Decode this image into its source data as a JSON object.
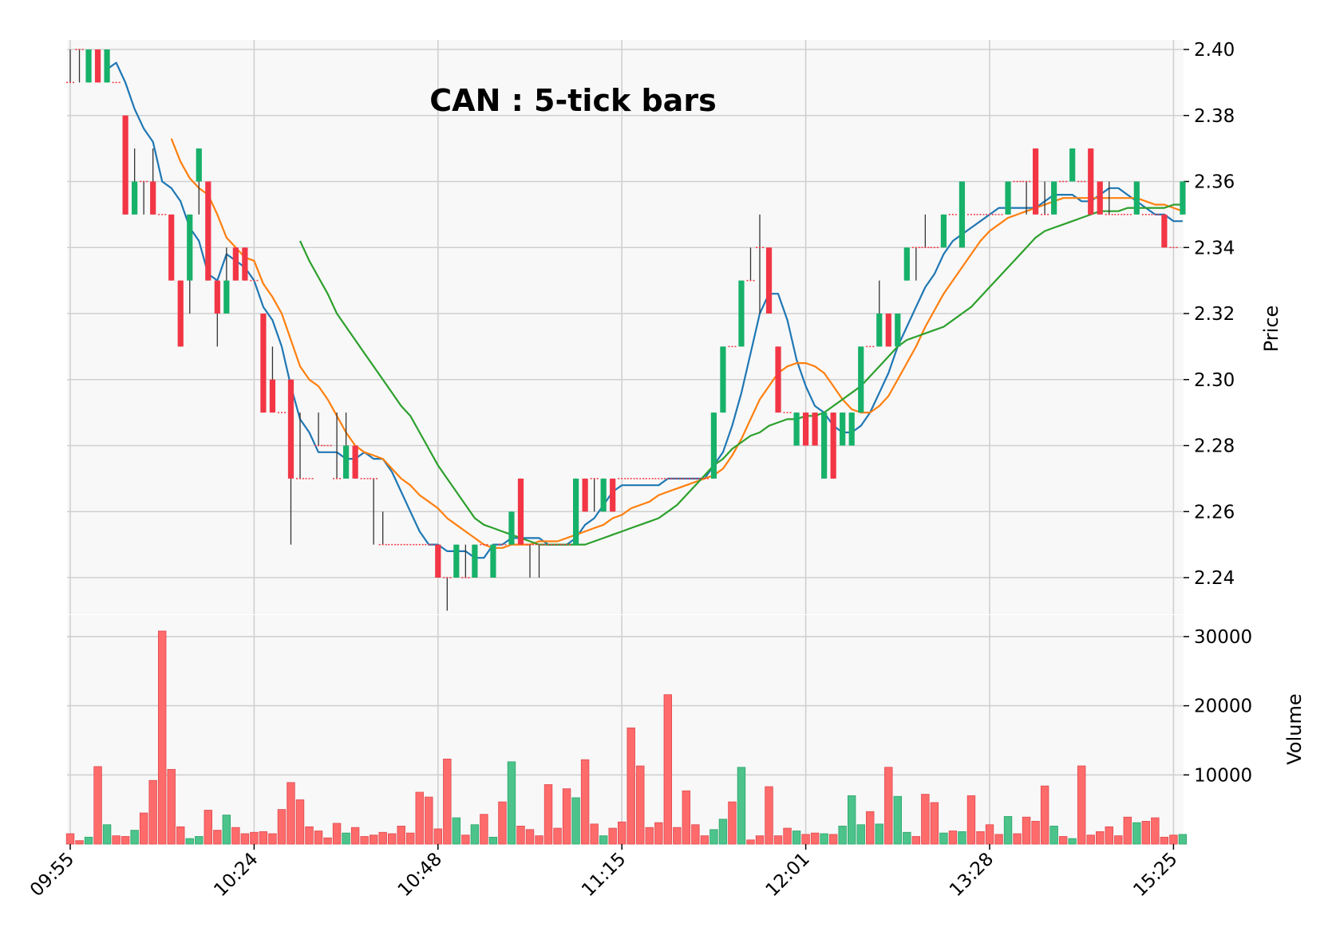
{
  "chart_data": {
    "type": "candlestick",
    "title": "CAN : 5-tick bars",
    "price_axis": {
      "label": "Price",
      "ticks": [
        "2.24",
        "2.26",
        "2.28",
        "2.30",
        "2.32",
        "2.34",
        "2.36",
        "2.38",
        "2.40"
      ],
      "ylim": [
        2.23,
        2.4
      ]
    },
    "volume_axis": {
      "label": "Volume",
      "ticks": [
        "10000",
        "20000",
        "30000"
      ],
      "ylim": [
        0,
        31000
      ]
    },
    "x_ticks": [
      {
        "index": 0,
        "label": "09:55"
      },
      {
        "index": 20,
        "label": "10:24"
      },
      {
        "index": 40,
        "label": "10:48"
      },
      {
        "index": 60,
        "label": "11:15"
      },
      {
        "index": 80,
        "label": "12:01"
      },
      {
        "index": 100,
        "label": "13:28"
      },
      {
        "index": 120,
        "label": "15:25"
      }
    ],
    "grid": true,
    "colors": {
      "up": "#17b169",
      "down": "#f23645",
      "up_volume": "#4cc38a",
      "down_volume": "#ff6b6b",
      "ma_short": "#1f77b4",
      "ma_mid": "#ff7f0e",
      "ma_long": "#2ca02c"
    },
    "candles": [
      [
        2.39,
        2.4,
        2.39,
        2.39
      ],
      [
        2.4,
        2.4,
        2.39,
        2.4
      ],
      [
        2.39,
        2.4,
        2.39,
        2.4
      ],
      [
        2.4,
        2.4,
        2.39,
        2.39
      ],
      [
        2.39,
        2.4,
        2.39,
        2.4
      ],
      [
        2.39,
        2.39,
        2.39,
        2.39
      ],
      [
        2.38,
        2.38,
        2.35,
        2.35
      ],
      [
        2.35,
        2.37,
        2.35,
        2.36
      ],
      [
        2.36,
        2.36,
        2.35,
        2.36
      ],
      [
        2.36,
        2.37,
        2.35,
        2.35
      ],
      [
        2.35,
        2.35,
        2.35,
        2.35
      ],
      [
        2.35,
        2.35,
        2.33,
        2.33
      ],
      [
        2.33,
        2.33,
        2.31,
        2.31
      ],
      [
        2.33,
        2.35,
        2.32,
        2.35
      ],
      [
        2.36,
        2.37,
        2.35,
        2.37
      ],
      [
        2.36,
        2.36,
        2.33,
        2.33
      ],
      [
        2.33,
        2.33,
        2.31,
        2.32
      ],
      [
        2.32,
        2.34,
        2.32,
        2.33
      ],
      [
        2.34,
        2.34,
        2.33,
        2.33
      ],
      [
        2.34,
        2.34,
        2.33,
        2.33
      ],
      [
        2.33,
        2.33,
        2.33,
        2.33
      ],
      [
        2.32,
        2.32,
        2.29,
        2.29
      ],
      [
        2.3,
        2.31,
        2.29,
        2.29
      ],
      [
        2.29,
        2.29,
        2.29,
        2.29
      ],
      [
        2.3,
        2.3,
        2.25,
        2.27
      ],
      [
        2.27,
        2.29,
        2.27,
        2.27
      ],
      [
        2.27,
        2.27,
        2.27,
        2.27
      ],
      [
        2.28,
        2.29,
        2.28,
        2.28
      ],
      [
        2.28,
        2.28,
        2.28,
        2.28
      ],
      [
        2.27,
        2.29,
        2.27,
        2.27
      ],
      [
        2.27,
        2.29,
        2.27,
        2.28
      ],
      [
        2.28,
        2.28,
        2.27,
        2.27
      ],
      [
        2.27,
        2.27,
        2.27,
        2.27
      ],
      [
        2.27,
        2.27,
        2.25,
        2.27
      ],
      [
        2.25,
        2.26,
        2.25,
        2.25
      ],
      [
        2.25,
        2.25,
        2.25,
        2.25
      ],
      [
        2.25,
        2.25,
        2.25,
        2.25
      ],
      [
        2.25,
        2.25,
        2.25,
        2.25
      ],
      [
        2.25,
        2.25,
        2.25,
        2.25
      ],
      [
        2.25,
        2.25,
        2.25,
        2.25
      ],
      [
        2.25,
        2.25,
        2.24,
        2.24
      ],
      [
        2.24,
        2.24,
        2.23,
        2.24
      ],
      [
        2.24,
        2.25,
        2.24,
        2.25
      ],
      [
        2.24,
        2.25,
        2.24,
        2.24
      ],
      [
        2.24,
        2.25,
        2.24,
        2.25
      ],
      [
        2.25,
        2.25,
        2.25,
        2.25
      ],
      [
        2.24,
        2.25,
        2.24,
        2.25
      ],
      [
        2.25,
        2.25,
        2.25,
        2.25
      ],
      [
        2.25,
        2.26,
        2.25,
        2.26
      ],
      [
        2.27,
        2.27,
        2.25,
        2.25
      ],
      [
        2.25,
        2.25,
        2.24,
        2.25
      ],
      [
        2.25,
        2.25,
        2.24,
        2.25
      ],
      [
        2.25,
        2.25,
        2.25,
        2.25
      ],
      [
        2.25,
        2.25,
        2.25,
        2.25
      ],
      [
        2.25,
        2.25,
        2.25,
        2.25
      ],
      [
        2.25,
        2.27,
        2.25,
        2.27
      ],
      [
        2.27,
        2.27,
        2.26,
        2.26
      ],
      [
        2.27,
        2.27,
        2.26,
        2.27
      ],
      [
        2.26,
        2.27,
        2.26,
        2.27
      ],
      [
        2.27,
        2.27,
        2.26,
        2.26
      ],
      [
        2.27,
        2.27,
        2.27,
        2.27
      ],
      [
        2.27,
        2.27,
        2.27,
        2.27
      ],
      [
        2.27,
        2.27,
        2.27,
        2.27
      ],
      [
        2.27,
        2.27,
        2.27,
        2.27
      ],
      [
        2.27,
        2.27,
        2.27,
        2.27
      ],
      [
        2.27,
        2.27,
        2.27,
        2.27
      ],
      [
        2.27,
        2.27,
        2.27,
        2.27
      ],
      [
        2.27,
        2.27,
        2.27,
        2.27
      ],
      [
        2.27,
        2.27,
        2.27,
        2.27
      ],
      [
        2.27,
        2.27,
        2.27,
        2.27
      ],
      [
        2.27,
        2.29,
        2.27,
        2.29
      ],
      [
        2.29,
        2.31,
        2.29,
        2.31
      ],
      [
        2.31,
        2.31,
        2.31,
        2.31
      ],
      [
        2.31,
        2.33,
        2.31,
        2.33
      ],
      [
        2.33,
        2.34,
        2.33,
        2.33
      ],
      [
        2.34,
        2.35,
        2.32,
        2.34
      ],
      [
        2.34,
        2.34,
        2.32,
        2.32
      ],
      [
        2.31,
        2.31,
        2.29,
        2.29
      ],
      [
        2.29,
        2.29,
        2.29,
        2.29
      ],
      [
        2.28,
        2.29,
        2.28,
        2.29
      ],
      [
        2.29,
        2.29,
        2.28,
        2.28
      ],
      [
        2.29,
        2.29,
        2.28,
        2.28
      ],
      [
        2.27,
        2.29,
        2.27,
        2.29
      ],
      [
        2.29,
        2.29,
        2.27,
        2.27
      ],
      [
        2.28,
        2.29,
        2.28,
        2.29
      ],
      [
        2.28,
        2.29,
        2.28,
        2.29
      ],
      [
        2.29,
        2.31,
        2.29,
        2.31
      ],
      [
        2.31,
        2.31,
        2.31,
        2.31
      ],
      [
        2.31,
        2.33,
        2.31,
        2.32
      ],
      [
        2.32,
        2.32,
        2.31,
        2.31
      ],
      [
        2.31,
        2.32,
        2.31,
        2.32
      ],
      [
        2.33,
        2.34,
        2.33,
        2.34
      ],
      [
        2.34,
        2.34,
        2.33,
        2.34
      ],
      [
        2.34,
        2.35,
        2.34,
        2.34
      ],
      [
        2.34,
        2.34,
        2.34,
        2.34
      ],
      [
        2.34,
        2.35,
        2.34,
        2.35
      ],
      [
        2.35,
        2.35,
        2.35,
        2.35
      ],
      [
        2.34,
        2.36,
        2.34,
        2.36
      ],
      [
        2.35,
        2.35,
        2.35,
        2.35
      ],
      [
        2.35,
        2.35,
        2.35,
        2.35
      ],
      [
        2.35,
        2.35,
        2.35,
        2.35
      ],
      [
        2.35,
        2.35,
        2.35,
        2.35
      ],
      [
        2.35,
        2.36,
        2.35,
        2.36
      ],
      [
        2.36,
        2.36,
        2.36,
        2.36
      ],
      [
        2.36,
        2.36,
        2.35,
        2.36
      ],
      [
        2.37,
        2.37,
        2.35,
        2.35
      ],
      [
        2.35,
        2.36,
        2.35,
        2.35
      ],
      [
        2.35,
        2.36,
        2.35,
        2.36
      ],
      [
        2.36,
        2.36,
        2.36,
        2.36
      ],
      [
        2.36,
        2.37,
        2.36,
        2.37
      ],
      [
        2.36,
        2.36,
        2.36,
        2.36
      ],
      [
        2.37,
        2.37,
        2.35,
        2.35
      ],
      [
        2.36,
        2.36,
        2.35,
        2.35
      ],
      [
        2.35,
        2.36,
        2.35,
        2.35
      ],
      [
        2.35,
        2.35,
        2.35,
        2.35
      ],
      [
        2.35,
        2.35,
        2.35,
        2.35
      ],
      [
        2.35,
        2.36,
        2.35,
        2.36
      ],
      [
        2.35,
        2.35,
        2.35,
        2.35
      ],
      [
        2.35,
        2.35,
        2.35,
        2.35
      ],
      [
        2.35,
        2.35,
        2.34,
        2.34
      ],
      [
        2.34,
        2.34,
        2.34,
        2.34
      ],
      [
        2.35,
        2.36,
        2.35,
        2.36
      ]
    ],
    "volume": [
      1500,
      500,
      1000,
      11200,
      2800,
      1200,
      1100,
      2000,
      4500,
      9200,
      30800,
      10800,
      2500,
      800,
      1100,
      4900,
      2000,
      4200,
      2400,
      1500,
      1700,
      1800,
      1500,
      5000,
      8900,
      6400,
      2500,
      1900,
      900,
      3000,
      1600,
      2400,
      1100,
      1300,
      1700,
      1500,
      2600,
      1600,
      7500,
      6800,
      2200,
      12300,
      3800,
      1300,
      2800,
      4300,
      1000,
      6100,
      11900,
      2600,
      2100,
      1200,
      8600,
      2300,
      8000,
      6700,
      12200,
      2900,
      1200,
      2300,
      3200,
      16800,
      11300,
      2400,
      3100,
      21600,
      2400,
      7700,
      2800,
      1200,
      2100,
      3600,
      6100,
      11100,
      600,
      1200,
      8300,
      1200,
      2300,
      1900,
      1400,
      1600,
      1500,
      1400,
      2600,
      7000,
      2800,
      4700,
      2900,
      11100,
      6900,
      1700,
      1100,
      7200,
      6000,
      1600,
      1900,
      1800,
      7000,
      1800,
      2800,
      1400,
      4000,
      1500,
      3900,
      3300,
      8400,
      2600,
      1100,
      800,
      11300,
      1300,
      1800,
      2500,
      1200,
      3900,
      3100,
      3300,
      3800,
      1000,
      1300,
      1400
    ],
    "moving_averages": [
      {
        "period": 5,
        "values": [
          null,
          null,
          null,
          null,
          2.394,
          2.396,
          2.39,
          2.382,
          2.376,
          2.372,
          2.36,
          2.358,
          2.354,
          2.346,
          2.342,
          2.332,
          2.33,
          2.338,
          2.336,
          2.334,
          2.33,
          2.322,
          2.318,
          2.31,
          2.298,
          2.288,
          2.284,
          2.278,
          2.278,
          2.278,
          2.276,
          2.276,
          2.278,
          2.276,
          2.276,
          2.272,
          2.266,
          2.26,
          2.254,
          2.25,
          2.25,
          2.248,
          2.248,
          2.248,
          2.246,
          2.246,
          2.25,
          2.25,
          2.252,
          2.252,
          2.252,
          2.252,
          2.25,
          2.25,
          2.25,
          2.252,
          2.256,
          2.258,
          2.262,
          2.266,
          2.268,
          2.268,
          2.268,
          2.268,
          2.268,
          2.27,
          2.27,
          2.27,
          2.27,
          2.27,
          2.274,
          2.278,
          2.286,
          2.296,
          2.308,
          2.32,
          2.326,
          2.326,
          2.318,
          2.306,
          2.298,
          2.292,
          2.29,
          2.286,
          2.284,
          2.284,
          2.286,
          2.29,
          2.296,
          2.302,
          2.31,
          2.316,
          2.322,
          2.328,
          2.332,
          2.338,
          2.342,
          2.344,
          2.346,
          2.348,
          2.35,
          2.352,
          2.352,
          2.352,
          2.352,
          2.352,
          2.354,
          2.356,
          2.356,
          2.356,
          2.354,
          2.354,
          2.356,
          2.358,
          2.358,
          2.356,
          2.354,
          2.352,
          2.35,
          2.35,
          2.348,
          2.348
        ]
      },
      {
        "period": 10,
        "values": [
          null,
          null,
          null,
          null,
          null,
          null,
          null,
          null,
          null,
          null,
          null,
          2.373,
          2.366,
          2.361,
          2.358,
          2.356,
          2.35,
          2.343,
          2.34,
          2.337,
          2.336,
          2.329,
          2.325,
          2.32,
          2.312,
          2.304,
          2.3,
          2.298,
          2.294,
          2.289,
          2.284,
          2.28,
          2.278,
          2.277,
          2.276,
          2.273,
          2.27,
          2.268,
          2.265,
          2.263,
          2.261,
          2.258,
          2.256,
          2.254,
          2.252,
          2.25,
          2.249,
          2.249,
          2.25,
          2.25,
          2.25,
          2.251,
          2.251,
          2.251,
          2.252,
          2.253,
          2.254,
          2.255,
          2.256,
          2.258,
          2.259,
          2.261,
          2.262,
          2.263,
          2.265,
          2.266,
          2.267,
          2.268,
          2.269,
          2.27,
          2.271,
          2.273,
          2.277,
          2.282,
          2.288,
          2.294,
          2.298,
          2.302,
          2.304,
          2.305,
          2.305,
          2.304,
          2.302,
          2.298,
          2.294,
          2.291,
          2.29,
          2.29,
          2.292,
          2.295,
          2.3,
          2.305,
          2.31,
          2.316,
          2.321,
          2.326,
          2.33,
          2.334,
          2.338,
          2.342,
          2.345,
          2.347,
          2.349,
          2.35,
          2.351,
          2.352,
          2.353,
          2.354,
          2.355,
          2.355,
          2.355,
          2.355,
          2.355,
          2.355,
          2.355,
          2.355,
          2.355,
          2.354,
          2.353,
          2.353,
          2.352,
          2.351
        ]
      },
      {
        "period": 20,
        "values": [
          null,
          null,
          null,
          null,
          null,
          null,
          null,
          null,
          null,
          null,
          null,
          null,
          null,
          null,
          null,
          null,
          null,
          null,
          null,
          null,
          null,
          null,
          null,
          null,
          null,
          2.342,
          2.336,
          2.331,
          2.326,
          2.32,
          2.316,
          2.312,
          2.308,
          2.304,
          2.3,
          2.296,
          2.292,
          2.289,
          2.284,
          2.279,
          2.274,
          2.27,
          2.266,
          2.262,
          2.258,
          2.256,
          2.255,
          2.254,
          2.253,
          2.252,
          2.251,
          2.25,
          2.25,
          2.25,
          2.25,
          2.25,
          2.25,
          2.251,
          2.252,
          2.253,
          2.254,
          2.255,
          2.256,
          2.257,
          2.258,
          2.26,
          2.262,
          2.265,
          2.268,
          2.271,
          2.274,
          2.276,
          2.279,
          2.281,
          2.283,
          2.284,
          2.286,
          2.287,
          2.288,
          2.288,
          2.289,
          2.289,
          2.29,
          2.292,
          2.294,
          2.296,
          2.298,
          2.301,
          2.304,
          2.307,
          2.31,
          2.312,
          2.313,
          2.314,
          2.315,
          2.316,
          2.318,
          2.32,
          2.322,
          2.325,
          2.328,
          2.331,
          2.334,
          2.337,
          2.34,
          2.343,
          2.345,
          2.346,
          2.347,
          2.348,
          2.349,
          2.35,
          2.351,
          2.351,
          2.351,
          2.352,
          2.352,
          2.352,
          2.352,
          2.352,
          2.353,
          2.353
        ]
      }
    ]
  }
}
